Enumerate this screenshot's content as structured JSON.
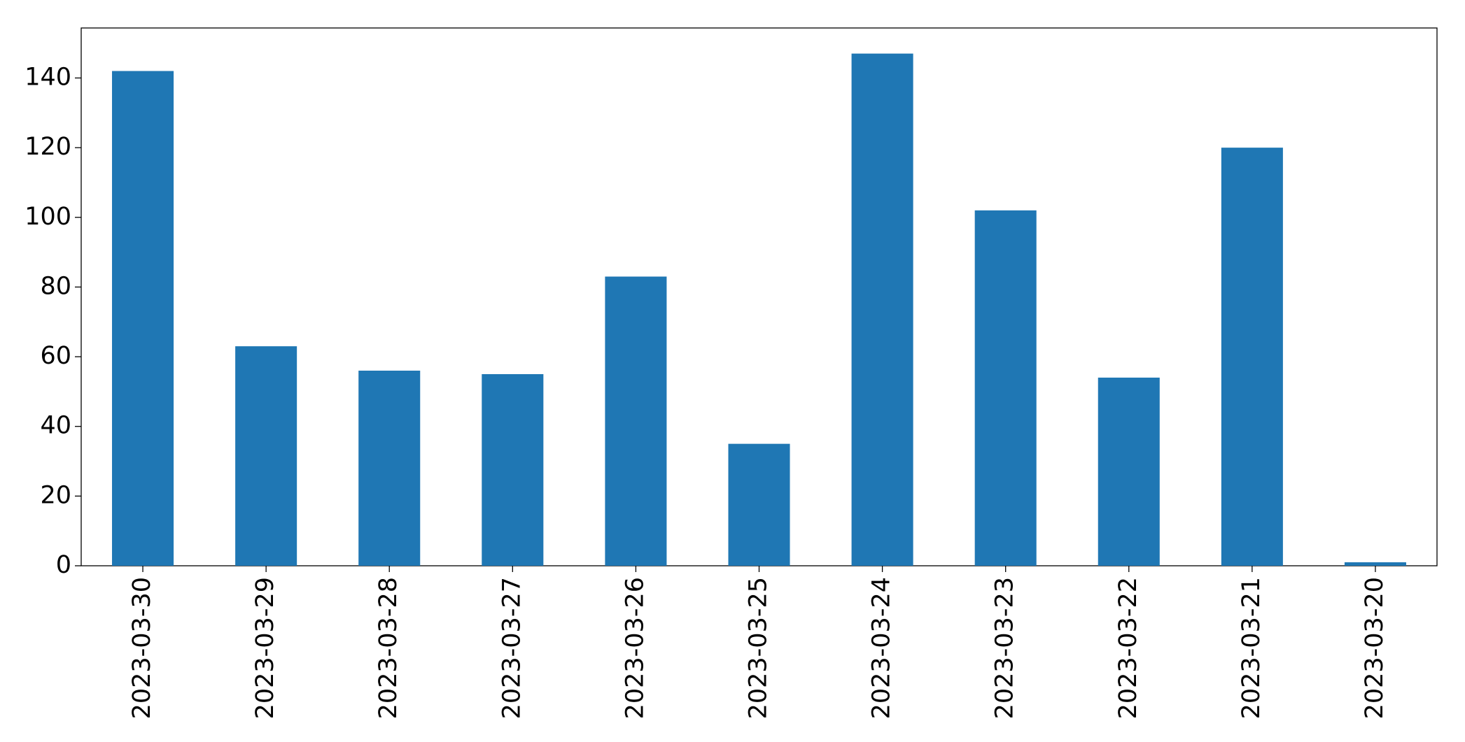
{
  "chart_data": {
    "type": "bar",
    "categories": [
      "2023-03-30",
      "2023-03-29",
      "2023-03-28",
      "2023-03-27",
      "2023-03-26",
      "2023-03-25",
      "2023-03-24",
      "2023-03-23",
      "2023-03-22",
      "2023-03-21",
      "2023-03-20"
    ],
    "values": [
      142,
      63,
      56,
      55,
      83,
      35,
      147,
      102,
      54,
      120,
      1
    ],
    "color": "#1f77b4",
    "ylim": [
      0,
      154.35
    ],
    "yticks": [
      0,
      20,
      40,
      60,
      80,
      100,
      120,
      140
    ],
    "grid": false
  }
}
